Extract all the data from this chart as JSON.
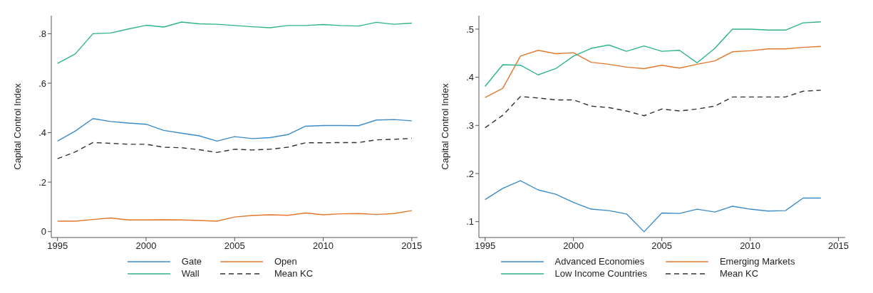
{
  "chart_data": [
    {
      "type": "line",
      "ylabel": "Capital Control Index",
      "x": [
        1995,
        1996,
        1997,
        1998,
        1999,
        2000,
        2001,
        2002,
        2003,
        2004,
        2005,
        2006,
        2007,
        2008,
        2009,
        2010,
        2011,
        2012,
        2013,
        2014,
        2015
      ],
      "xlim": [
        1994.65,
        2015.33
      ],
      "xticks": [
        1995,
        2000,
        2005,
        2010,
        2015
      ],
      "ylim": [
        -0.024,
        0.873
      ],
      "yticks": [
        0,
        {
          "value": 0.2,
          "label": ".2"
        },
        {
          "value": 0.4,
          "label": ".4"
        },
        {
          "value": 0.6,
          "label": ".6"
        },
        {
          "value": 0.8,
          "label": ".8"
        }
      ],
      "legend": "bottom",
      "series": [
        {
          "name": "Gate",
          "color": "#3b8bc9",
          "values": [
            0.366,
            0.406,
            0.457,
            0.445,
            0.439,
            0.434,
            0.409,
            0.398,
            0.387,
            0.366,
            0.384,
            0.376,
            0.38,
            0.392,
            0.426,
            0.429,
            0.429,
            0.428,
            0.451,
            0.453,
            0.448
          ]
        },
        {
          "name": "Open",
          "color": "#e3782d",
          "values": [
            0.042,
            0.042,
            0.049,
            0.055,
            0.047,
            0.047,
            0.048,
            0.047,
            0.045,
            0.042,
            0.059,
            0.065,
            0.068,
            0.066,
            0.075,
            0.068,
            0.072,
            0.073,
            0.069,
            0.073,
            0.085
          ]
        },
        {
          "name": "Wall",
          "color": "#2fb38a",
          "values": [
            0.68,
            0.718,
            0.8,
            0.803,
            0.819,
            0.834,
            0.827,
            0.847,
            0.84,
            0.838,
            0.833,
            0.828,
            0.824,
            0.833,
            0.833,
            0.837,
            0.833,
            0.831,
            0.846,
            0.838,
            0.843
          ]
        },
        {
          "name": "Mean KC",
          "color": "#333333",
          "line_style": "dashed",
          "values": [
            0.295,
            0.322,
            0.36,
            0.357,
            0.353,
            0.353,
            0.341,
            0.339,
            0.331,
            0.32,
            0.333,
            0.33,
            0.333,
            0.341,
            0.359,
            0.359,
            0.36,
            0.36,
            0.371,
            0.373,
            0.377
          ]
        }
      ]
    },
    {
      "type": "line",
      "ylabel": "Capital Control Index",
      "x": [
        1995,
        1996,
        1997,
        1998,
        1999,
        2000,
        2001,
        2002,
        2003,
        2004,
        2005,
        2006,
        2007,
        2008,
        2009,
        2010,
        2011,
        2012,
        2013,
        2014
      ],
      "xlim": [
        1994.65,
        2015.38
      ],
      "xticks": [
        1995,
        2000,
        2005,
        2010,
        2015
      ],
      "ylim": [
        0.067,
        0.528
      ],
      "yticks": [
        {
          "value": 0.1,
          "label": ".1"
        },
        {
          "value": 0.2,
          "label": ".2"
        },
        {
          "value": 0.3,
          "label": ".3"
        },
        {
          "value": 0.4,
          "label": ".4"
        },
        {
          "value": 0.5,
          "label": ".5"
        }
      ],
      "legend": "bottom",
      "series": [
        {
          "name": "Advanced Economies",
          "color": "#3b8bc9",
          "values": [
            0.146,
            0.169,
            0.185,
            0.166,
            0.157,
            0.14,
            0.126,
            0.123,
            0.116,
            0.079,
            0.118,
            0.117,
            0.126,
            0.12,
            0.132,
            0.126,
            0.122,
            0.123,
            0.149,
            0.149
          ]
        },
        {
          "name": "Emerging Markets",
          "color": "#e3782d",
          "values": [
            0.358,
            0.377,
            0.444,
            0.456,
            0.449,
            0.451,
            0.431,
            0.427,
            0.421,
            0.418,
            0.425,
            0.419,
            0.427,
            0.434,
            0.453,
            0.455,
            0.459,
            0.459,
            0.462,
            0.464
          ]
        },
        {
          "name": "Low Income Countries",
          "color": "#2fb38a",
          "values": [
            0.381,
            0.426,
            0.425,
            0.405,
            0.418,
            0.444,
            0.46,
            0.467,
            0.454,
            0.465,
            0.454,
            0.456,
            0.43,
            0.46,
            0.5,
            0.5,
            0.498,
            0.498,
            0.513,
            0.515
          ]
        },
        {
          "name": "Mean KC",
          "color": "#333333",
          "line_style": "dashed",
          "values": [
            0.295,
            0.321,
            0.36,
            0.357,
            0.353,
            0.353,
            0.34,
            0.337,
            0.33,
            0.32,
            0.334,
            0.33,
            0.334,
            0.34,
            0.359,
            0.359,
            0.359,
            0.359,
            0.371,
            0.373
          ]
        }
      ]
    }
  ]
}
